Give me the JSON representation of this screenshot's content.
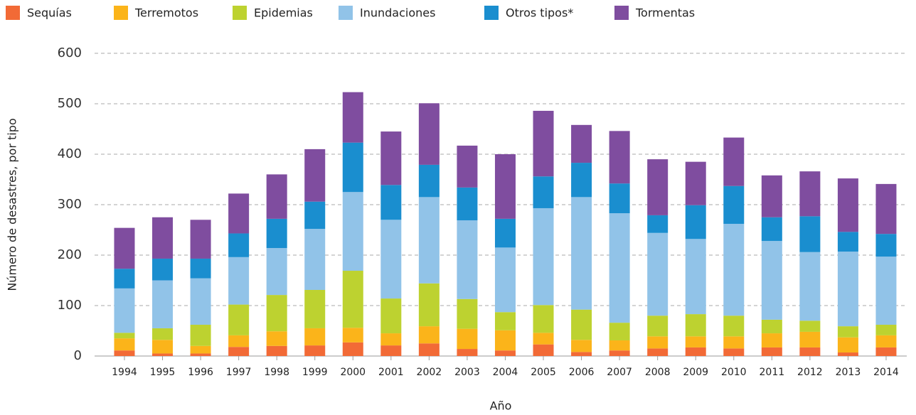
{
  "chart_data": {
    "type": "stacked_bar",
    "x_label": "Año",
    "y_label": "Número de desastres, por tipo",
    "categories": [
      "1994",
      "1995",
      "1996",
      "1997",
      "1998",
      "1999",
      "2000",
      "2001",
      "2002",
      "2003",
      "2004",
      "2005",
      "2006",
      "2007",
      "2008",
      "2009",
      "2010",
      "2011",
      "2012",
      "2013",
      "2014"
    ],
    "series": [
      {
        "name": "Sequías",
        "color": "#f26a36",
        "values": [
          11,
          5,
          5,
          18,
          20,
          21,
          27,
          21,
          25,
          14,
          11,
          23,
          8,
          11,
          15,
          17,
          15,
          17,
          17,
          7,
          17
        ]
      },
      {
        "name": "Terremotos",
        "color": "#fbb41a",
        "values": [
          24,
          27,
          15,
          23,
          29,
          34,
          29,
          24,
          34,
          40,
          40,
          23,
          24,
          20,
          24,
          22,
          24,
          28,
          31,
          30,
          24
        ]
      },
      {
        "name": "Epidemias",
        "color": "#bdd230",
        "values": [
          11,
          23,
          42,
          61,
          72,
          76,
          113,
          69,
          85,
          59,
          36,
          55,
          60,
          35,
          41,
          44,
          41,
          27,
          22,
          22,
          21
        ]
      },
      {
        "name": "Inundaciones",
        "color": "#91c3e8",
        "values": [
          88,
          95,
          92,
          94,
          93,
          121,
          156,
          156,
          171,
          156,
          128,
          192,
          223,
          217,
          164,
          149,
          182,
          156,
          136,
          148,
          135
        ]
      },
      {
        "name": "Otros tipos*",
        "color": "#1a8ecf",
        "values": [
          39,
          43,
          39,
          47,
          58,
          54,
          98,
          69,
          64,
          65,
          57,
          63,
          68,
          59,
          35,
          67,
          75,
          47,
          71,
          39,
          45
        ]
      },
      {
        "name": "Tormentas",
        "color": "#7f4d9f",
        "values": [
          81,
          82,
          77,
          79,
          88,
          104,
          100,
          106,
          122,
          83,
          128,
          130,
          75,
          104,
          111,
          86,
          96,
          83,
          89,
          106,
          99
        ]
      }
    ],
    "ylim": [
      0,
      600
    ],
    "yticks": [
      0,
      100,
      200,
      300,
      400,
      500,
      600
    ],
    "grid": true
  }
}
